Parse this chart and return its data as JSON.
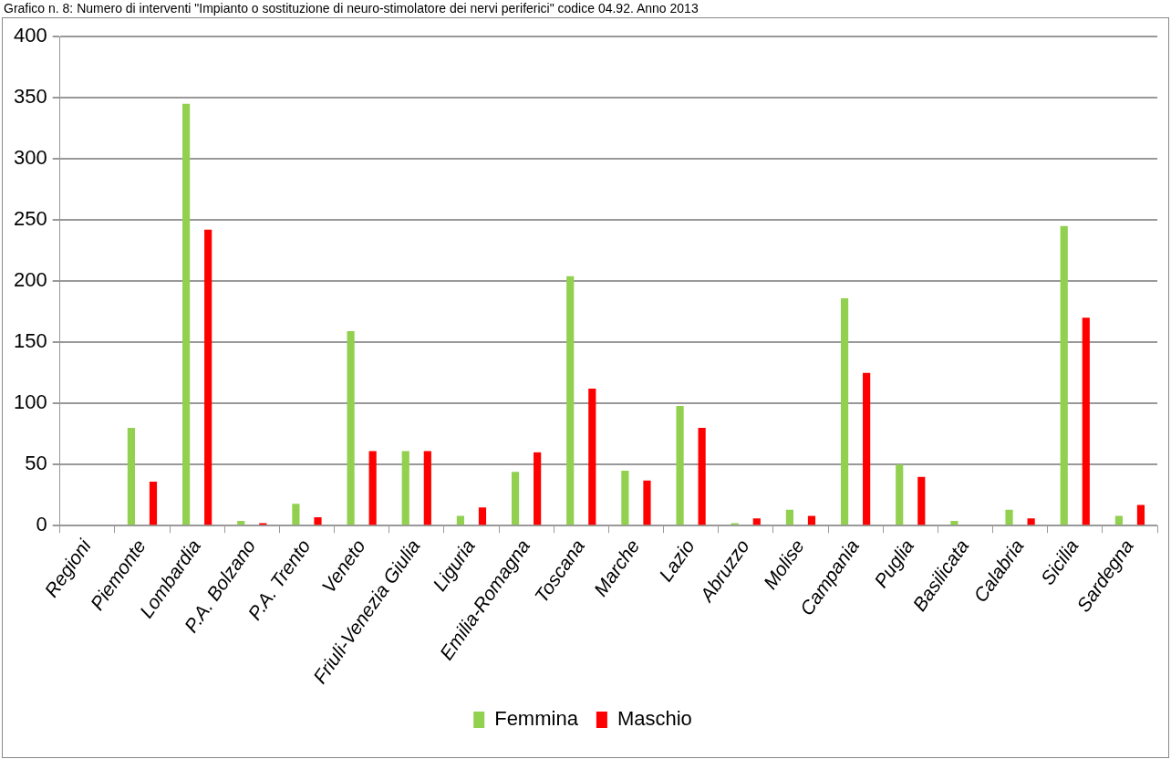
{
  "chart_data": {
    "type": "bar",
    "title": "Grafico n. 8: Numero di interventi \"Impianto o sostituzione di neuro-stimolatore dei nervi periferici\" codice 04.92. Anno 2013",
    "categories": [
      "Regioni",
      "Piemonte",
      "Lombardia",
      "P.A. Bolzano",
      "P.A. Trento",
      "Veneto",
      "Friuli-Venezia Giulia",
      "Liguria",
      "Emilia-Romagna",
      "Toscana",
      "Marche",
      "Lazio",
      "Abruzzo",
      "Molise",
      "Campania",
      "Puglia",
      "Basilicata",
      "Calabria",
      "Sicilia",
      "Sardegna"
    ],
    "series": [
      {
        "name": "Femmina",
        "color": "#92d050",
        "values": [
          null,
          80,
          345,
          4,
          18,
          159,
          61,
          8,
          44,
          204,
          45,
          98,
          2,
          13,
          186,
          50,
          4,
          13,
          245,
          8
        ]
      },
      {
        "name": "Maschio",
        "color": "#ff0000",
        "values": [
          null,
          36,
          242,
          2,
          7,
          61,
          61,
          15,
          60,
          112,
          37,
          80,
          6,
          8,
          125,
          40,
          null,
          6,
          170,
          17
        ]
      }
    ],
    "ylim": [
      0,
      400
    ],
    "yticks": [
      0,
      50,
      100,
      150,
      200,
      250,
      300,
      350,
      400
    ],
    "grid": "y",
    "legend": "bottom"
  }
}
